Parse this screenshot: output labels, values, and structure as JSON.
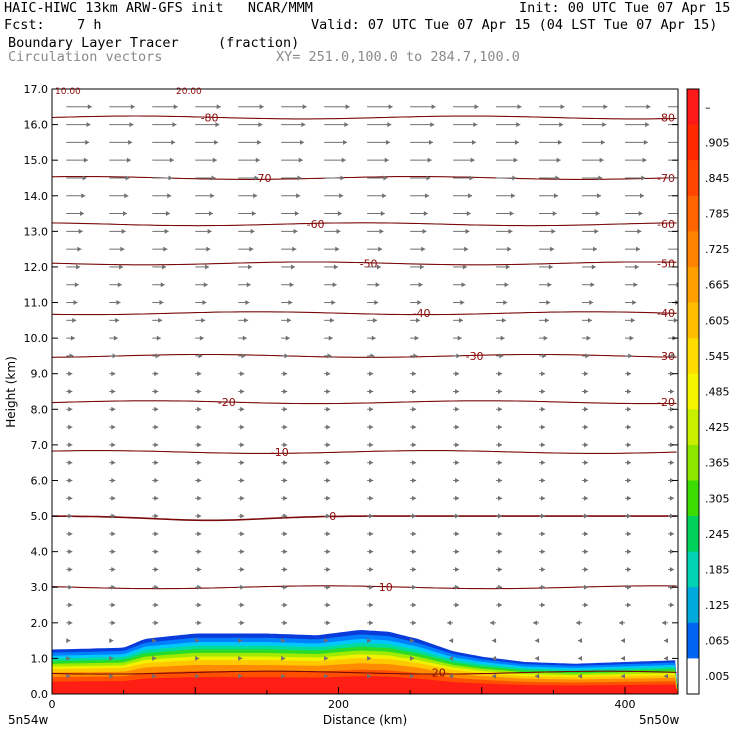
{
  "header": {
    "line1_left": "HAIC-HIWC 13km ARW-GFS init   NCAR/MMM",
    "line1_right": "Init: 00 UTC Tue 07 Apr 15",
    "line2_left": "Fcst:    7 h",
    "line2_right": "Valid: 07 UTC Tue 07 Apr 15 (04 LST Tue 07 Apr 15)",
    "line3_left": "Boundary Layer Tracer",
    "line3_mid": "(fraction)",
    "line4_left": "Circulation vectors",
    "line4_mid": "XY= 251.0,100.0 to 284.7,100.0"
  },
  "chart_data": {
    "type": "heatmap",
    "title": "Boundary Layer Tracer",
    "units": "(fraction)",
    "overlay": "Circulation vectors",
    "xlabel": "Distance (km)",
    "ylabel": "Height (km)",
    "xlim": [
      0,
      437
    ],
    "ylim": [
      0,
      17
    ],
    "x_ticks": [
      0,
      200,
      400
    ],
    "y_ticks": [
      "0.0",
      "1.0",
      "2.0",
      "3.0",
      "4.0",
      "5.0",
      "6.0",
      "7.0",
      "8.0",
      "9.0",
      "10.0",
      "11.0",
      "12.0",
      "13.0",
      "14.0",
      "15.0",
      "16.0",
      "17.0"
    ],
    "x_endpoint_labels": {
      "left": "5n54w",
      "right": "5n50w"
    },
    "colorbar": {
      "labels": [
        "–",
        ".905",
        ".845",
        ".785",
        ".725",
        ".665",
        ".605",
        ".545",
        ".485",
        ".425",
        ".365",
        ".305",
        ".245",
        ".185",
        ".125",
        ".065",
        ".005"
      ],
      "colors": [
        "#ff1a1a",
        "#ff2a00",
        "#ff4500",
        "#ff6400",
        "#ff8200",
        "#ffa000",
        "#ffbe00",
        "#ffdc00",
        "#f5f500",
        "#c8f000",
        "#8ce600",
        "#3cdc00",
        "#00d25a",
        "#00d2b4",
        "#00aadc",
        "#0064f0",
        "#ffffff"
      ]
    },
    "pbl_top_km": [
      [
        0,
        1.25
      ],
      [
        50,
        1.3
      ],
      [
        65,
        1.55
      ],
      [
        100,
        1.7
      ],
      [
        150,
        1.7
      ],
      [
        185,
        1.65
      ],
      [
        215,
        1.8
      ],
      [
        235,
        1.75
      ],
      [
        255,
        1.55
      ],
      [
        280,
        1.2
      ],
      [
        300,
        1.05
      ],
      [
        330,
        0.9
      ],
      [
        365,
        0.85
      ],
      [
        400,
        0.9
      ],
      [
        437,
        0.95
      ]
    ],
    "theta_contours": [
      {
        "label": "-80",
        "height": 16.2
      },
      {
        "label": "-70",
        "height": 14.5
      },
      {
        "label": "-60",
        "height": 13.2
      },
      {
        "label": "-50",
        "height": 12.1
      },
      {
        "label": "-40",
        "height": 10.7
      },
      {
        "label": "-30",
        "height": 9.5
      },
      {
        "label": "-20",
        "height": 8.2
      },
      {
        "label": "-10",
        "height": 6.8
      },
      {
        "label": "0",
        "height": 5.0
      },
      {
        "label": "10",
        "height": 3.0
      },
      {
        "label": "20",
        "height": 0.6
      }
    ],
    "top_left_labels": [
      "10.00",
      "20.00"
    ]
  }
}
